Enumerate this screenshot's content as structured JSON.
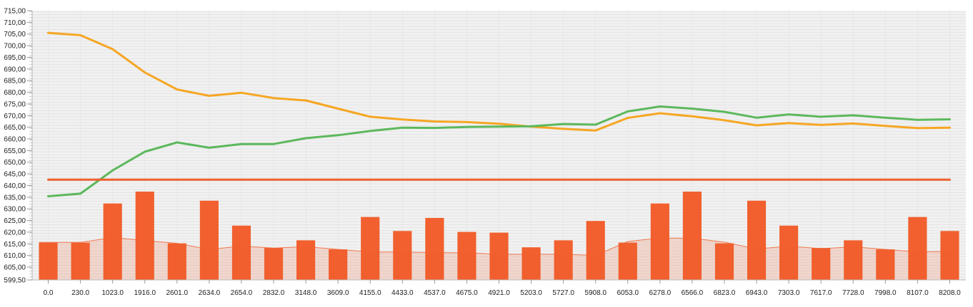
{
  "chart_data": {
    "type": "bar",
    "title": "",
    "xlabel": "",
    "ylabel": "",
    "ylim": [
      599.5,
      715.0
    ],
    "y_ticks": [
      "599,50",
      "605,00",
      "610,00",
      "615,00",
      "620,00",
      "625,00",
      "630,00",
      "635,00",
      "640,00",
      "645,00",
      "650,00",
      "655,00",
      "660,00",
      "665,00",
      "670,00",
      "675,00",
      "680,00",
      "685,00",
      "690,00",
      "695,00",
      "700,00",
      "705,00",
      "710,00",
      "715,00"
    ],
    "y_tick_values": [
      599.5,
      605,
      610,
      615,
      620,
      625,
      630,
      635,
      640,
      645,
      650,
      655,
      660,
      665,
      670,
      675,
      680,
      685,
      690,
      695,
      700,
      705,
      710,
      715
    ],
    "categories": [
      "0.0",
      "230.0",
      "1023.0",
      "1916.0",
      "2601.0",
      "2634.0",
      "2654.0",
      "2832.0",
      "3148.0",
      "3609.0",
      "4155.0",
      "4433.0",
      "4537.0",
      "4675.0",
      "4921.0",
      "5203.0",
      "5727.0",
      "5908.0",
      "6053.0",
      "6278.0",
      "6566.0",
      "6823.0",
      "6943.0",
      "7303.0",
      "7617.0",
      "7728.0",
      "7998.0",
      "8107.0",
      "8208.0"
    ],
    "grid": true,
    "legend": "none",
    "series": [
      {
        "kind": "bar",
        "color": "#f1602e",
        "values": [
          615.5,
          615.5,
          632.3,
          637.4,
          615.2,
          633.5,
          622.8,
          613.2,
          616.5,
          612.6,
          626.5,
          620.5,
          626.1,
          620.1,
          619.8,
          613.5,
          616.5,
          624.8,
          615.5,
          632.3,
          637.4,
          615.2,
          633.5,
          622.8,
          613.2,
          616.5,
          612.6,
          626.5,
          620.5
        ]
      },
      {
        "kind": "area",
        "color": "#f1602e",
        "values": [
          615.6,
          615.6,
          617.7,
          616.4,
          615.2,
          612.6,
          614.0,
          613.2,
          613.8,
          612.6,
          611.5,
          611.5,
          611.2,
          611.2,
          610.5,
          610.5,
          610.5,
          610.0,
          616.0,
          617.5,
          617.4,
          615.7,
          612.8,
          614.0,
          612.9,
          613.7,
          612.6,
          611.5,
          611.8
        ]
      },
      {
        "kind": "line",
        "color": "#f6a623",
        "values": [
          705.5,
          704.5,
          698.5,
          688.5,
          681.2,
          678.5,
          679.8,
          677.5,
          676.5,
          673.0,
          669.5,
          668.3,
          667.5,
          667.2,
          666.5,
          665.3,
          664.3,
          663.6,
          669.0,
          671.0,
          669.7,
          668.0,
          665.8,
          666.8,
          666.0,
          666.6,
          665.6,
          664.6,
          664.8
        ]
      },
      {
        "kind": "line",
        "color": "#5cb85c",
        "values": [
          635.4,
          636.5,
          646.5,
          654.5,
          658.5,
          656.2,
          657.8,
          657.8,
          660.3,
          661.6,
          663.4,
          664.8,
          664.7,
          665.1,
          665.3,
          665.4,
          666.4,
          666.1,
          671.8,
          673.9,
          673.0,
          671.6,
          669.1,
          670.5,
          669.5,
          670.1,
          669.1,
          668.2,
          668.4
        ]
      },
      {
        "kind": "line",
        "color": "#f1602e",
        "values": [
          642.5,
          642.5,
          642.5,
          642.5,
          642.5,
          642.5,
          642.5,
          642.5,
          642.5,
          642.5,
          642.5,
          642.5,
          642.5,
          642.5,
          642.5,
          642.5,
          642.5,
          642.5,
          642.5,
          642.5,
          642.5,
          642.5,
          642.5,
          642.5,
          642.5,
          642.5,
          642.5,
          642.5,
          642.5
        ]
      }
    ]
  }
}
